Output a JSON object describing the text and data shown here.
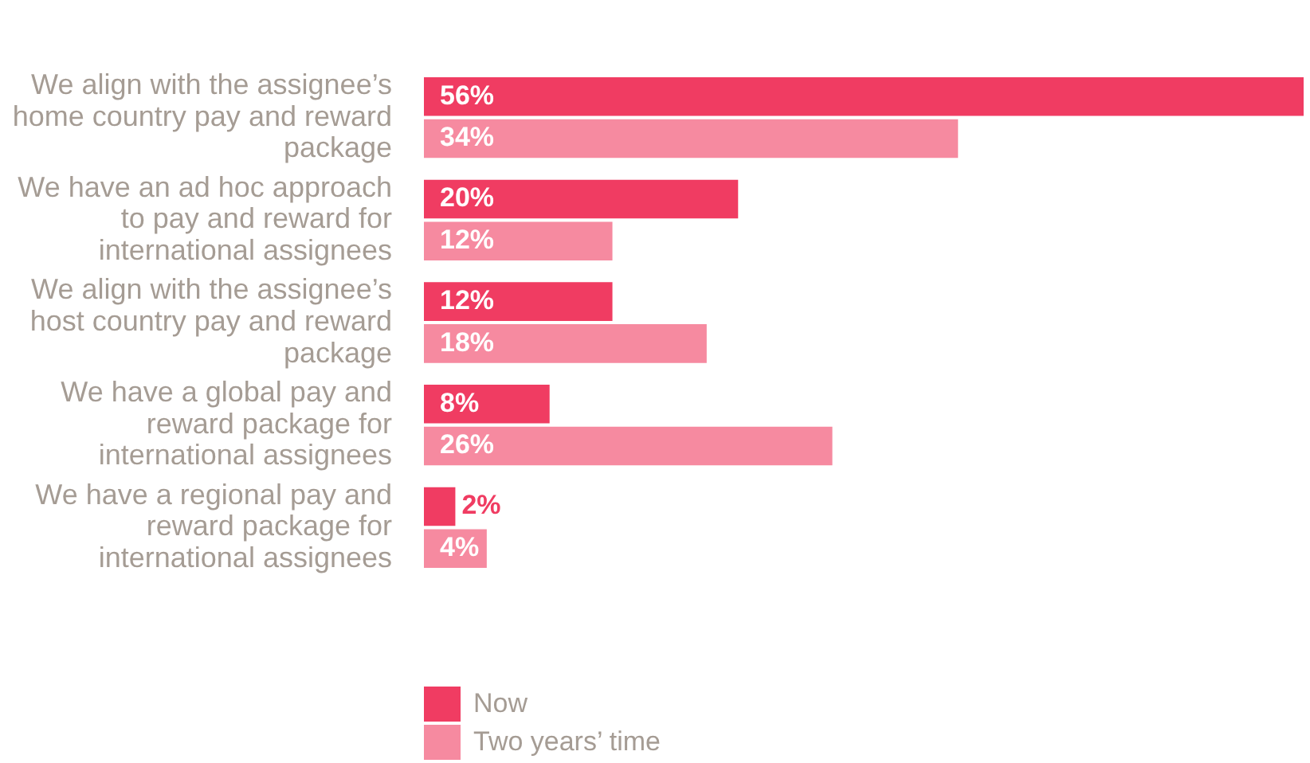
{
  "chart_data": {
    "type": "bar",
    "orientation": "horizontal",
    "categories": [
      "We align with the assignee’s home country pay and reward package",
      "We have an ad hoc approach to pay and reward for international assignees",
      "We align with the assignee’s host country pay and reward package",
      "We have a global pay and reward package for international assignees",
      "We have a regional pay and reward package for international assignees"
    ],
    "series": [
      {
        "name": "Now",
        "color": "#f03c62",
        "values": [
          56,
          20,
          12,
          8,
          2
        ],
        "value_labels": [
          "56%",
          "20%",
          "12%",
          "8%",
          "2%"
        ]
      },
      {
        "name": "Two years’ time",
        "color": "#f68aa0",
        "values": [
          34,
          12,
          18,
          26,
          4
        ],
        "value_labels": [
          "34%",
          "12%",
          "18%",
          "26%",
          "4%"
        ]
      }
    ],
    "legend": "bottom left",
    "tick_labels": "y"
  }
}
